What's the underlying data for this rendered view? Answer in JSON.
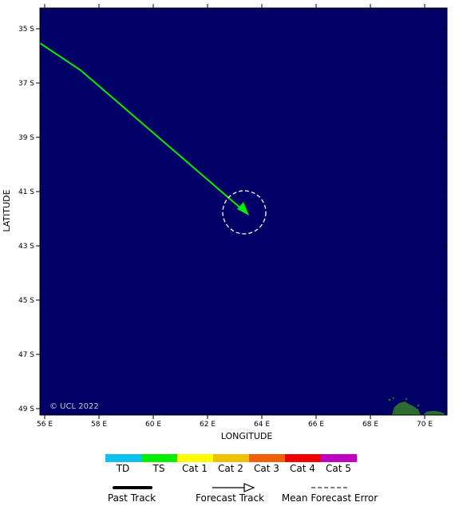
{
  "map": {
    "x_axis_title": "LONGITUDE",
    "y_axis_title": "LATITUDE",
    "copyright": "© UCL 2022",
    "lon_ticks": [
      "56 E",
      "58 E",
      "60 E",
      "62 E",
      "64 E",
      "66 E",
      "68 E",
      "70 E"
    ],
    "lat_ticks": [
      "35 S",
      "37 S",
      "39 S",
      "41 S",
      "43 S",
      "45 S",
      "47 S",
      "49 S"
    ],
    "ocean_color": "#000066",
    "land_color": "#2e6b2e"
  },
  "legend": {
    "categories": [
      {
        "label": "TD",
        "color": "#10c0f0"
      },
      {
        "label": "TS",
        "color": "#00ee00"
      },
      {
        "label": "Cat 1",
        "color": "#ffff00"
      },
      {
        "label": "Cat 2",
        "color": "#f0c000"
      },
      {
        "label": "Cat 3",
        "color": "#f06000"
      },
      {
        "label": "Cat 4",
        "color": "#ee0000"
      },
      {
        "label": "Cat 5",
        "color": "#c000c0"
      }
    ],
    "past_track_label": "Past Track",
    "forecast_track_label": "Forecast Track",
    "error_label": "Mean Forecast Error"
  }
}
